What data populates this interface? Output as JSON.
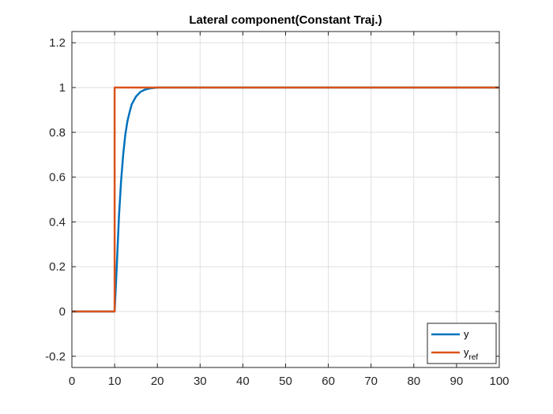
{
  "chart_data": {
    "type": "line",
    "title": "Lateral component(Constant Traj.)",
    "xlabel": "",
    "ylabel": "",
    "xlim": [
      0,
      100
    ],
    "ylim": [
      -0.25,
      1.25
    ],
    "xticks": [
      0,
      10,
      20,
      30,
      40,
      50,
      60,
      70,
      80,
      90,
      100
    ],
    "xtick_labels": [
      "0",
      "10",
      "20",
      "30",
      "40",
      "50",
      "60",
      "70",
      "80",
      "90",
      "100"
    ],
    "yticks": [
      -0.2,
      0,
      0.2,
      0.4,
      0.6,
      0.8,
      1,
      1.2
    ],
    "ytick_labels": [
      "-0.2",
      "0",
      "0.2",
      "0.4",
      "0.6",
      "0.8",
      "1",
      "1.2"
    ],
    "grid": true,
    "legend_position": "bottom-right",
    "series": [
      {
        "name": "y",
        "color": "#0072BD",
        "x": [
          0,
          10,
          10.5,
          11,
          11.5,
          12,
          12.5,
          13,
          13.5,
          14,
          15,
          16,
          17,
          18,
          19,
          20,
          22,
          25,
          100
        ],
        "y": [
          0,
          0,
          0.2,
          0.42,
          0.58,
          0.7,
          0.79,
          0.85,
          0.89,
          0.925,
          0.96,
          0.98,
          0.99,
          0.995,
          0.998,
          1,
          1,
          1,
          1
        ]
      },
      {
        "name": "y",
        "name_subscript": "ref",
        "color": "#D95319",
        "x": [
          0,
          10,
          10,
          100
        ],
        "y": [
          0,
          0,
          1,
          1
        ]
      }
    ]
  }
}
